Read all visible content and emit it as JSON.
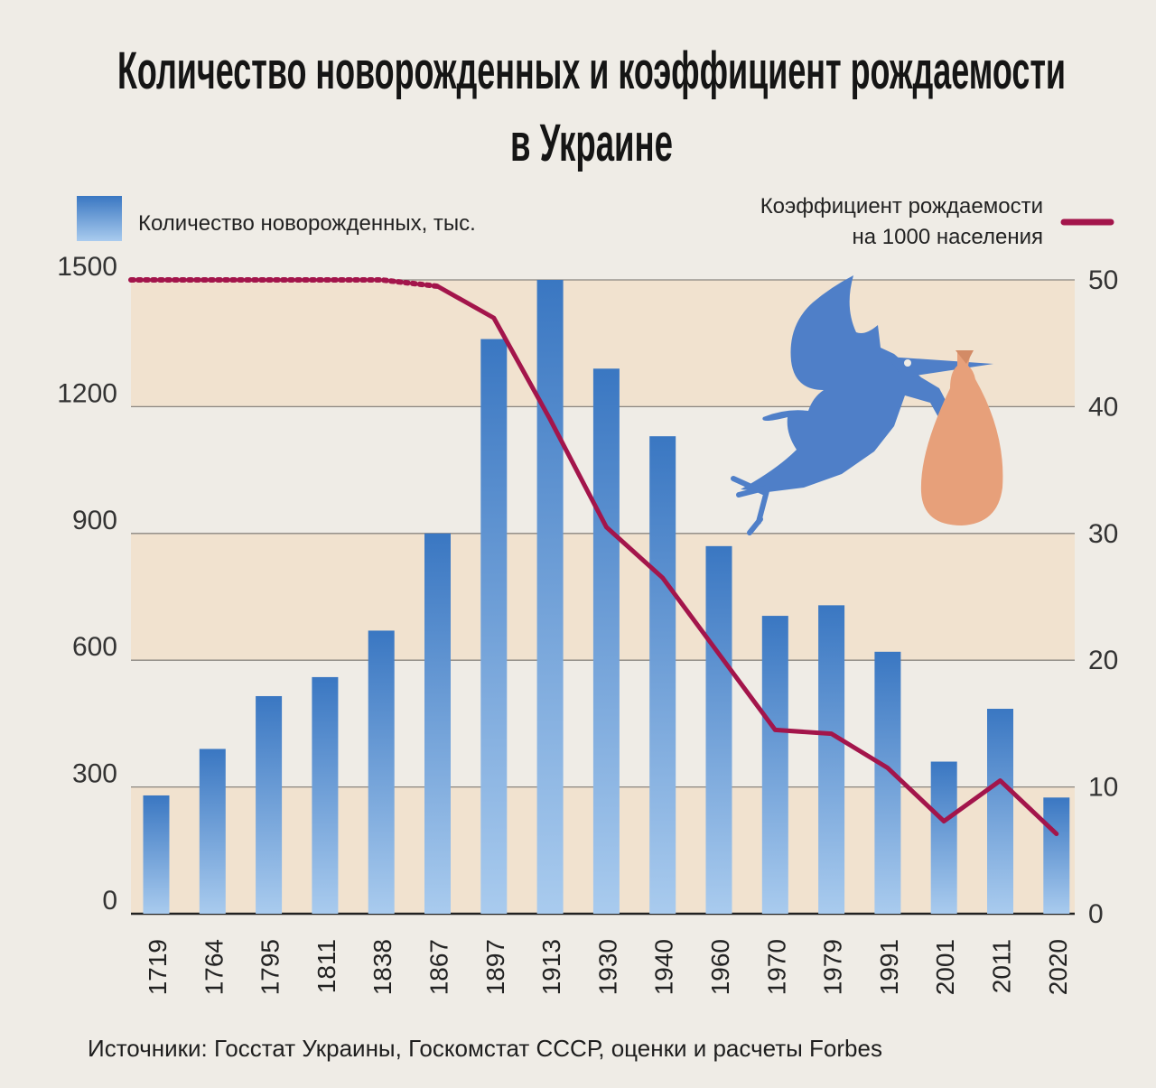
{
  "title_line1": "Количество новорожденных и коэффициент рождаемости",
  "title_line2": "в Украине",
  "legend": {
    "bars_label": "Количество новорожденных, тыс.",
    "line_label_line1": "Коэффициент рождаемости",
    "line_label_line2": "на 1000 населения"
  },
  "source": "Источники: Госстат Украины, Госкомстат СССР, оценки и расчеты Forbes",
  "colors": {
    "bar_top": "#3a77c2",
    "bar_bottom": "#a9cbee",
    "line": "#a3154b",
    "band": "#f1e2cf",
    "stork": "#4f7fc8",
    "bundle": "#e7a07a"
  },
  "chart_data": {
    "type": "bar",
    "categories": [
      "1719",
      "1764",
      "1795",
      "1811",
      "1838",
      "1867",
      "1897",
      "1913",
      "1930",
      "1940",
      "1960",
      "1970",
      "1979",
      "1991",
      "2001",
      "2011",
      "2020"
    ],
    "series": [
      {
        "name": "Количество новорожденных, тыс.",
        "type": "bar",
        "axis": "left",
        "values": [
          280,
          390,
          515,
          560,
          670,
          900,
          1360,
          1500,
          1290,
          1130,
          870,
          705,
          730,
          620,
          360,
          485,
          275
        ]
      },
      {
        "name": "Коэффициент рождаемости на 1000 населения",
        "type": "line",
        "axis": "right",
        "values": [
          50,
          50,
          50,
          50,
          50,
          49.5,
          47,
          39,
          30.5,
          26.5,
          20.5,
          14.5,
          14.2,
          11.5,
          7.3,
          10.5,
          6.3
        ],
        "dotted_until_index": 5
      }
    ],
    "y_left": {
      "ylim": [
        0,
        1500
      ],
      "ticks": [
        "0",
        "300",
        "600",
        "900",
        "1200",
        "1500"
      ]
    },
    "y_right": {
      "ylim": [
        0,
        50
      ],
      "ticks": [
        "0",
        "10",
        "20",
        "30",
        "40",
        "50"
      ]
    },
    "legend_placement": "top",
    "grid": true
  }
}
